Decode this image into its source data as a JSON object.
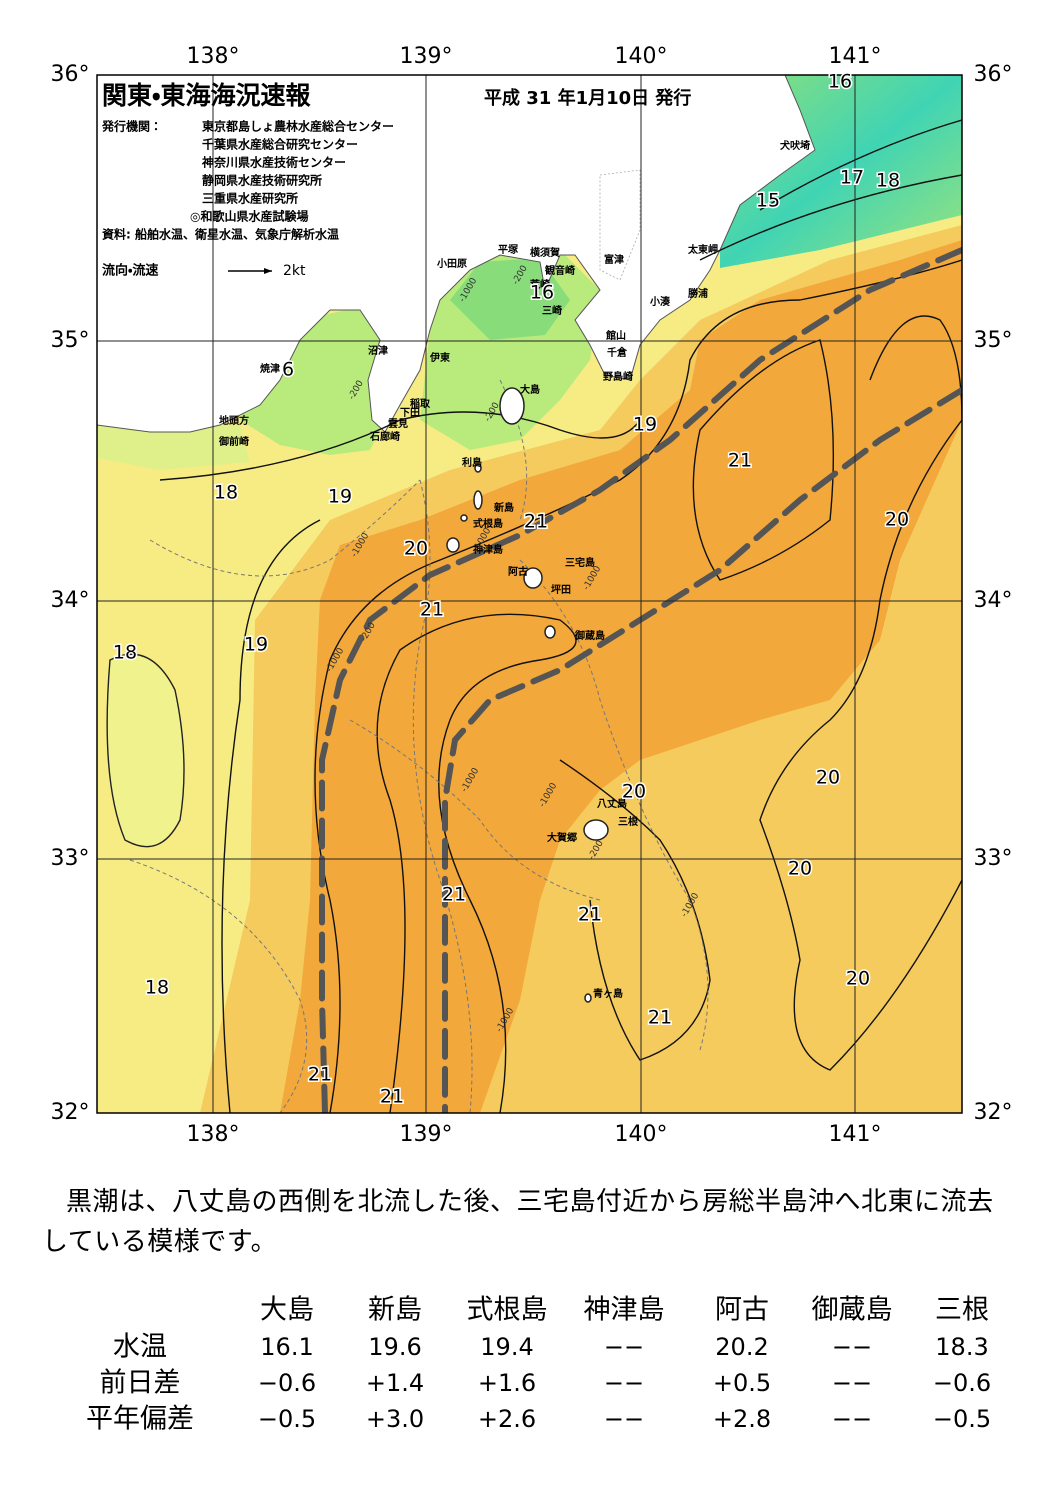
{
  "map": {
    "title": "関東・東海海況速報",
    "issued": "平成 31 年1月10日 発行",
    "publisher_label": "発行機関：",
    "publishers": [
      "東京都島しょ農林水産総合センター",
      "千葉県水産総合研究センター",
      "神奈川県水産技術センター",
      "静岡県水産技術研究所",
      "三重県水産研究所",
      "◎和歌山県水産試験場"
    ],
    "sources": "資料: 船舶水温、衛星水温、気象庁解析水温",
    "flow_label": "流向・流速",
    "flow_scale": "2kt",
    "lon_labels": [
      "138°",
      "139°",
      "140°",
      "141°"
    ],
    "lat_labels": [
      "36°",
      "35°",
      "34°",
      "33°",
      "32°"
    ],
    "place_names": [
      "犬吠埼",
      "太東岬",
      "勝浦",
      "小湊",
      "富津",
      "横須賀",
      "観音崎",
      "荒崎",
      "三崎",
      "平塚",
      "小田原",
      "館山",
      "千倉",
      "野島崎",
      "沼津",
      "伊東",
      "焼津",
      "大島",
      "稲取",
      "下田",
      "雲見",
      "石廊崎",
      "地頭方",
      "御前崎",
      "利島",
      "新島",
      "式根島",
      "神津島",
      "三宅島",
      "阿古",
      "坪田",
      "御蔵島",
      "八丈島",
      "三根",
      "大賀郷",
      "青ヶ島"
    ],
    "isotherm_labels": [
      16,
      17,
      18,
      15,
      16,
      6,
      19,
      21,
      18,
      19,
      20,
      21,
      20,
      21,
      18,
      19,
      20,
      20,
      20,
      21,
      21,
      20,
      18,
      21,
      21,
      21
    ],
    "depth_labels": [
      "-200",
      "-1000",
      "-200",
      "-200",
      "-1000",
      "-1000",
      "-200",
      "-1000",
      "-1000",
      "-1000",
      "-1000",
      "-1000",
      "-200",
      "-1000"
    ]
  },
  "summary": "黒潮は、八丈島の西側を北流した後、三宅島付近から房総半島沖へ北東に流去している模様です。",
  "table": {
    "columns": [
      "大島",
      "新島",
      "式根島",
      "神津島",
      "阿古",
      "御蔵島",
      "三根"
    ],
    "rows": [
      {
        "label": "水温",
        "values": [
          "16.1",
          "19.6",
          "19.4",
          "−−",
          "20.2",
          "−−",
          "18.3"
        ]
      },
      {
        "label": "前日差",
        "values": [
          "−0.6",
          "+1.4",
          "+1.6",
          "−−",
          "+0.5",
          "−−",
          "−0.6"
        ]
      },
      {
        "label": "平年偏差",
        "values": [
          "−0.5",
          "+3.0",
          "+2.6",
          "−−",
          "+2.8",
          "−−",
          "−0.5"
        ]
      }
    ]
  }
}
